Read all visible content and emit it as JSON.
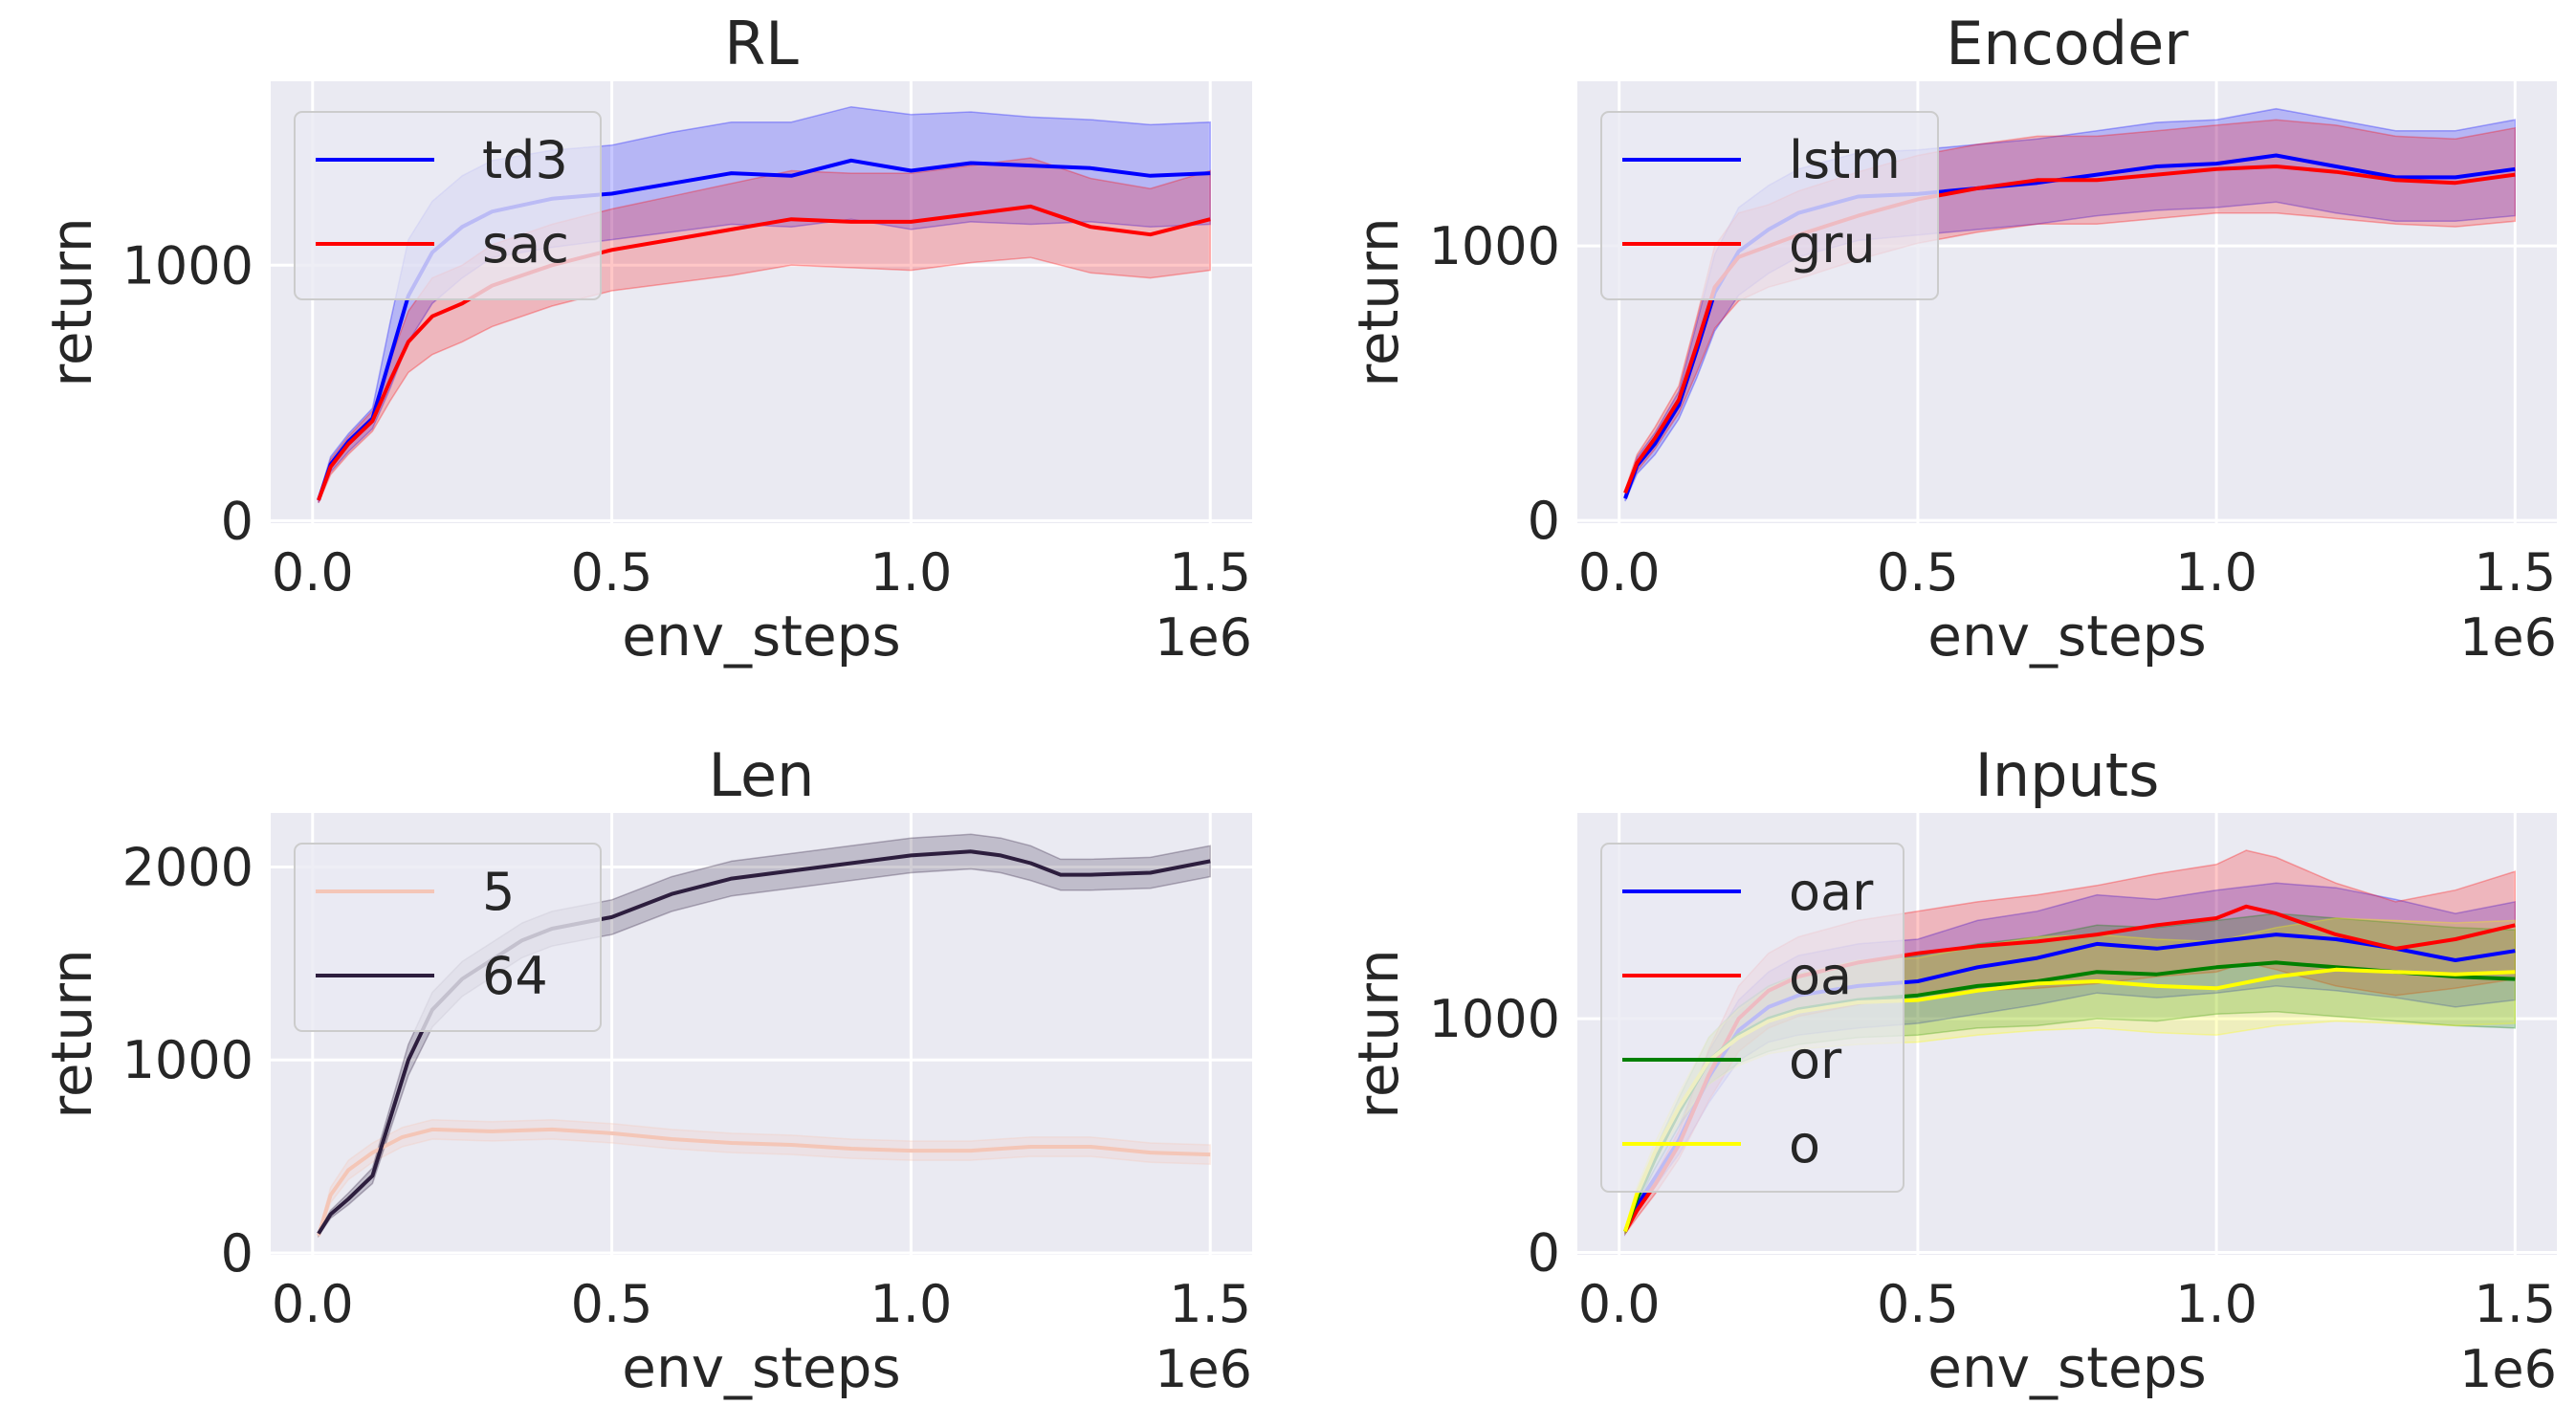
{
  "chart_data": [
    {
      "type": "line",
      "title": "RL",
      "xlabel": "env_steps",
      "ylabel": "return",
      "x_offset_label": "1e6",
      "xlim": [
        -0.07,
        1.57
      ],
      "ylim": [
        -10,
        1720
      ],
      "xticks": [
        0.0,
        0.5,
        1.0,
        1.5
      ],
      "xtick_labels": [
        "0.0",
        "0.5",
        "1.0",
        "1.5"
      ],
      "yticks": [
        0,
        1000
      ],
      "ytick_labels": [
        "0",
        "1000"
      ],
      "grid": true,
      "legend_position": "upper-left",
      "series": [
        {
          "name": "td3",
          "color": "#0000ff",
          "x": [
            0.01,
            0.03,
            0.06,
            0.1,
            0.13,
            0.16,
            0.2,
            0.25,
            0.3,
            0.4,
            0.5,
            0.6,
            0.7,
            0.8,
            0.9,
            1.0,
            1.1,
            1.2,
            1.3,
            1.4,
            1.5
          ],
          "y": [
            80,
            220,
            310,
            400,
            640,
            880,
            1050,
            1150,
            1210,
            1260,
            1280,
            1320,
            1360,
            1350,
            1410,
            1370,
            1400,
            1390,
            1380,
            1350,
            1360
          ],
          "lower": [
            70,
            190,
            270,
            360,
            520,
            700,
            850,
            950,
            1030,
            1070,
            1100,
            1130,
            1160,
            1150,
            1180,
            1140,
            1170,
            1160,
            1170,
            1150,
            1160
          ],
          "upper": [
            90,
            250,
            340,
            440,
            780,
            1100,
            1250,
            1350,
            1410,
            1450,
            1470,
            1520,
            1560,
            1560,
            1620,
            1590,
            1600,
            1580,
            1570,
            1550,
            1560
          ]
        },
        {
          "name": "sac",
          "color": "#ff0000",
          "x": [
            0.01,
            0.03,
            0.06,
            0.1,
            0.13,
            0.16,
            0.2,
            0.25,
            0.3,
            0.4,
            0.5,
            0.6,
            0.7,
            0.8,
            0.9,
            1.0,
            1.1,
            1.2,
            1.3,
            1.4,
            1.5
          ],
          "y": [
            80,
            210,
            300,
            390,
            550,
            700,
            800,
            850,
            920,
            1000,
            1060,
            1100,
            1140,
            1180,
            1170,
            1170,
            1200,
            1230,
            1150,
            1120,
            1180
          ],
          "lower": [
            70,
            180,
            260,
            350,
            470,
            580,
            650,
            700,
            760,
            840,
            900,
            930,
            960,
            1000,
            990,
            980,
            1010,
            1030,
            970,
            950,
            980
          ],
          "upper": [
            90,
            240,
            330,
            430,
            630,
            820,
            950,
            1000,
            1080,
            1160,
            1220,
            1270,
            1320,
            1370,
            1360,
            1360,
            1390,
            1420,
            1340,
            1300,
            1370
          ]
        }
      ]
    },
    {
      "type": "line",
      "title": "Encoder",
      "xlabel": "env_steps",
      "ylabel": "return",
      "x_offset_label": "1e6",
      "xlim": [
        -0.07,
        1.57
      ],
      "ylim": [
        -10,
        1600
      ],
      "xticks": [
        0.0,
        0.5,
        1.0,
        1.5
      ],
      "xtick_labels": [
        "0.0",
        "0.5",
        "1.0",
        "1.5"
      ],
      "yticks": [
        0,
        1000
      ],
      "ytick_labels": [
        "0",
        "1000"
      ],
      "grid": true,
      "legend_position": "upper-left",
      "series": [
        {
          "name": "lstm",
          "color": "#0000ff",
          "x": [
            0.01,
            0.03,
            0.06,
            0.1,
            0.13,
            0.16,
            0.2,
            0.25,
            0.3,
            0.4,
            0.5,
            0.6,
            0.7,
            0.8,
            0.9,
            1.0,
            1.1,
            1.2,
            1.3,
            1.4,
            1.5
          ],
          "y": [
            80,
            200,
            280,
            420,
            620,
            830,
            980,
            1060,
            1120,
            1180,
            1190,
            1210,
            1230,
            1260,
            1290,
            1300,
            1330,
            1290,
            1250,
            1250,
            1280
          ],
          "lower": [
            70,
            170,
            240,
            370,
            520,
            690,
            820,
            900,
            960,
            1020,
            1040,
            1060,
            1080,
            1110,
            1130,
            1140,
            1160,
            1120,
            1090,
            1090,
            1110
          ],
          "upper": [
            90,
            230,
            320,
            470,
            720,
            970,
            1140,
            1220,
            1280,
            1340,
            1350,
            1370,
            1390,
            1420,
            1450,
            1460,
            1500,
            1460,
            1420,
            1420,
            1460
          ]
        },
        {
          "name": "gru",
          "color": "#ff0000",
          "x": [
            0.01,
            0.03,
            0.06,
            0.1,
            0.13,
            0.16,
            0.2,
            0.25,
            0.3,
            0.4,
            0.5,
            0.6,
            0.7,
            0.8,
            0.9,
            1.0,
            1.1,
            1.2,
            1.3,
            1.4,
            1.5
          ],
          "y": [
            100,
            210,
            300,
            440,
            640,
            850,
            960,
            1000,
            1040,
            1110,
            1170,
            1210,
            1240,
            1240,
            1260,
            1280,
            1290,
            1270,
            1240,
            1230,
            1260
          ],
          "lower": [
            90,
            180,
            260,
            390,
            540,
            700,
            800,
            850,
            880,
            950,
            1010,
            1050,
            1080,
            1080,
            1100,
            1120,
            1120,
            1100,
            1080,
            1070,
            1090
          ],
          "upper": [
            110,
            240,
            340,
            490,
            740,
            1000,
            1120,
            1150,
            1200,
            1270,
            1330,
            1370,
            1400,
            1400,
            1420,
            1440,
            1460,
            1440,
            1400,
            1390,
            1430
          ]
        }
      ]
    },
    {
      "type": "line",
      "title": "Len",
      "xlabel": "env_steps",
      "ylabel": "return",
      "x_offset_label": "1e6",
      "xlim": [
        -0.07,
        1.57
      ],
      "ylim": [
        -10,
        2280
      ],
      "xticks": [
        0.0,
        0.5,
        1.0,
        1.5
      ],
      "xtick_labels": [
        "0.0",
        "0.5",
        "1.0",
        "1.5"
      ],
      "yticks": [
        0,
        1000,
        2000
      ],
      "ytick_labels": [
        "0",
        "1000",
        "2000"
      ],
      "grid": true,
      "legend_position": "upper-left",
      "series": [
        {
          "name": "5",
          "color": "#f4c6b7",
          "x": [
            0.01,
            0.03,
            0.06,
            0.1,
            0.15,
            0.2,
            0.3,
            0.4,
            0.5,
            0.6,
            0.7,
            0.8,
            0.9,
            1.0,
            1.1,
            1.2,
            1.3,
            1.4,
            1.5
          ],
          "y": [
            90,
            300,
            430,
            520,
            600,
            640,
            630,
            640,
            620,
            590,
            570,
            560,
            540,
            530,
            530,
            550,
            550,
            520,
            510
          ],
          "lower": [
            80,
            260,
            380,
            470,
            550,
            590,
            580,
            590,
            570,
            540,
            520,
            510,
            490,
            480,
            480,
            500,
            500,
            470,
            460
          ],
          "upper": [
            100,
            340,
            480,
            570,
            650,
            690,
            680,
            690,
            670,
            640,
            620,
            610,
            590,
            580,
            580,
            600,
            600,
            570,
            560
          ]
        },
        {
          "name": "64",
          "color": "#2d1e3e",
          "x": [
            0.01,
            0.03,
            0.06,
            0.1,
            0.13,
            0.16,
            0.2,
            0.25,
            0.3,
            0.35,
            0.4,
            0.5,
            0.6,
            0.7,
            0.8,
            0.9,
            1.0,
            1.1,
            1.15,
            1.2,
            1.25,
            1.3,
            1.4,
            1.5
          ],
          "y": [
            100,
            200,
            280,
            400,
            700,
            1000,
            1260,
            1420,
            1520,
            1620,
            1680,
            1740,
            1860,
            1940,
            1980,
            2020,
            2060,
            2080,
            2060,
            2020,
            1960,
            1960,
            1970,
            2030
          ],
          "lower": [
            90,
            180,
            250,
            360,
            640,
            920,
            1170,
            1330,
            1430,
            1530,
            1590,
            1650,
            1770,
            1850,
            1890,
            1930,
            1970,
            1990,
            1970,
            1930,
            1880,
            1880,
            1890,
            1950
          ],
          "upper": [
            110,
            220,
            310,
            440,
            760,
            1080,
            1350,
            1510,
            1610,
            1710,
            1770,
            1830,
            1950,
            2030,
            2070,
            2110,
            2150,
            2170,
            2150,
            2110,
            2040,
            2040,
            2050,
            2110
          ]
        }
      ]
    },
    {
      "type": "line",
      "title": "Inputs",
      "xlabel": "env_steps",
      "ylabel": "return",
      "x_offset_label": "1e6",
      "xlim": [
        -0.07,
        1.57
      ],
      "ylim": [
        -10,
        1880
      ],
      "xticks": [
        0.0,
        0.5,
        1.0,
        1.5
      ],
      "xtick_labels": [
        "0.0",
        "0.5",
        "1.0",
        "1.5"
      ],
      "yticks": [
        0,
        1000
      ],
      "ytick_labels": [
        "0",
        "1000"
      ],
      "grid": true,
      "legend_position": "upper-left",
      "series": [
        {
          "name": "oar",
          "color": "#0000ff",
          "x": [
            0.01,
            0.03,
            0.06,
            0.1,
            0.15,
            0.2,
            0.25,
            0.3,
            0.4,
            0.5,
            0.6,
            0.7,
            0.8,
            0.9,
            1.0,
            1.1,
            1.2,
            1.3,
            1.4,
            1.5
          ],
          "y": [
            90,
            200,
            320,
            480,
            750,
            950,
            1050,
            1100,
            1140,
            1160,
            1220,
            1260,
            1320,
            1300,
            1330,
            1360,
            1340,
            1300,
            1250,
            1290
          ],
          "lower": [
            80,
            170,
            280,
            420,
            640,
            820,
            900,
            930,
            960,
            980,
            1020,
            1060,
            1110,
            1090,
            1110,
            1140,
            1120,
            1090,
            1050,
            1080
          ],
          "upper": [
            100,
            230,
            360,
            540,
            860,
            1080,
            1200,
            1270,
            1320,
            1340,
            1420,
            1460,
            1530,
            1510,
            1550,
            1580,
            1560,
            1510,
            1450,
            1500
          ]
        },
        {
          "name": "oa",
          "color": "#ff0000",
          "x": [
            0.01,
            0.03,
            0.06,
            0.1,
            0.15,
            0.2,
            0.25,
            0.3,
            0.4,
            0.5,
            0.6,
            0.7,
            0.8,
            0.9,
            1.0,
            1.05,
            1.1,
            1.2,
            1.3,
            1.4,
            1.5
          ],
          "y": [
            90,
            180,
            290,
            460,
            760,
            1000,
            1120,
            1180,
            1240,
            1280,
            1310,
            1330,
            1360,
            1400,
            1430,
            1480,
            1450,
            1360,
            1300,
            1340,
            1400
          ],
          "lower": [
            80,
            150,
            250,
            400,
            650,
            860,
            960,
            1010,
            1060,
            1100,
            1120,
            1130,
            1150,
            1180,
            1200,
            1240,
            1210,
            1140,
            1100,
            1130,
            1170
          ],
          "upper": [
            100,
            210,
            330,
            520,
            870,
            1140,
            1280,
            1350,
            1420,
            1460,
            1500,
            1530,
            1570,
            1620,
            1660,
            1720,
            1690,
            1580,
            1500,
            1550,
            1630
          ]
        },
        {
          "name": "or",
          "color": "#008000",
          "x": [
            0.01,
            0.03,
            0.06,
            0.1,
            0.15,
            0.2,
            0.25,
            0.3,
            0.4,
            0.5,
            0.6,
            0.7,
            0.8,
            0.9,
            1.0,
            1.1,
            1.2,
            1.3,
            1.4,
            1.5
          ],
          "y": [
            90,
            230,
            400,
            600,
            820,
            930,
            1000,
            1040,
            1080,
            1100,
            1140,
            1160,
            1200,
            1190,
            1220,
            1240,
            1220,
            1200,
            1180,
            1170
          ],
          "lower": [
            80,
            200,
            360,
            540,
            720,
            810,
            860,
            890,
            920,
            930,
            960,
            970,
            1000,
            990,
            1020,
            1030,
            1010,
            990,
            970,
            960
          ],
          "upper": [
            100,
            260,
            440,
            660,
            920,
            1050,
            1140,
            1190,
            1240,
            1270,
            1320,
            1350,
            1400,
            1390,
            1420,
            1450,
            1430,
            1410,
            1390,
            1380
          ]
        },
        {
          "name": "o",
          "color": "#ffff00",
          "x": [
            0.01,
            0.03,
            0.06,
            0.1,
            0.15,
            0.2,
            0.25,
            0.3,
            0.4,
            0.5,
            0.6,
            0.7,
            0.8,
            0.9,
            1.0,
            1.1,
            1.2,
            1.3,
            1.4,
            1.5
          ],
          "y": [
            90,
            250,
            430,
            620,
            820,
            920,
            990,
            1030,
            1070,
            1080,
            1120,
            1150,
            1160,
            1140,
            1130,
            1180,
            1210,
            1200,
            1190,
            1200
          ],
          "lower": [
            80,
            220,
            390,
            560,
            720,
            800,
            850,
            870,
            890,
            900,
            930,
            950,
            960,
            940,
            930,
            970,
            990,
            980,
            970,
            980
          ],
          "upper": [
            100,
            280,
            470,
            680,
            920,
            1040,
            1130,
            1190,
            1250,
            1260,
            1310,
            1350,
            1360,
            1340,
            1330,
            1390,
            1430,
            1420,
            1410,
            1420
          ]
        }
      ]
    }
  ]
}
